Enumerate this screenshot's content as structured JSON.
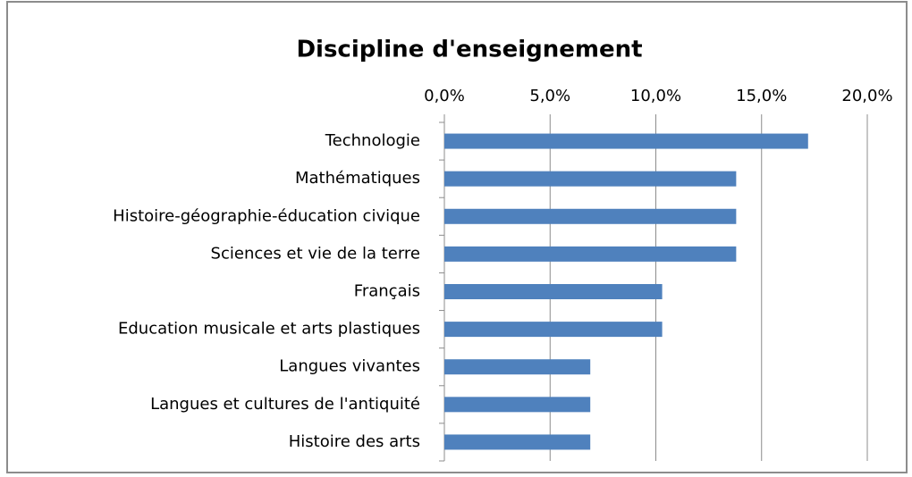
{
  "chart_data": {
    "type": "bar",
    "orientation": "horizontal",
    "title": "Discipline d'enseignement",
    "categories": [
      "Technologie",
      "Mathématiques",
      "Histoire-géographie-éducation civique",
      "Sciences et vie de la terre",
      "Français",
      "Education musicale et arts plastiques",
      "Langues vivantes",
      "Langues et cultures de l'antiquité",
      "Histoire des arts"
    ],
    "values": [
      17.2,
      13.8,
      13.8,
      13.8,
      10.3,
      10.3,
      6.9,
      6.9,
      6.9
    ],
    "color": "#4f81bd",
    "xlim": [
      0,
      20
    ],
    "xticks": [
      {
        "value": 0,
        "label": "0,0%"
      },
      {
        "value": 5,
        "label": "5,0%"
      },
      {
        "value": 10,
        "label": "10,0%"
      },
      {
        "value": 15,
        "label": "15,0%"
      },
      {
        "value": 20,
        "label": "20,0%"
      }
    ],
    "grid": true
  }
}
